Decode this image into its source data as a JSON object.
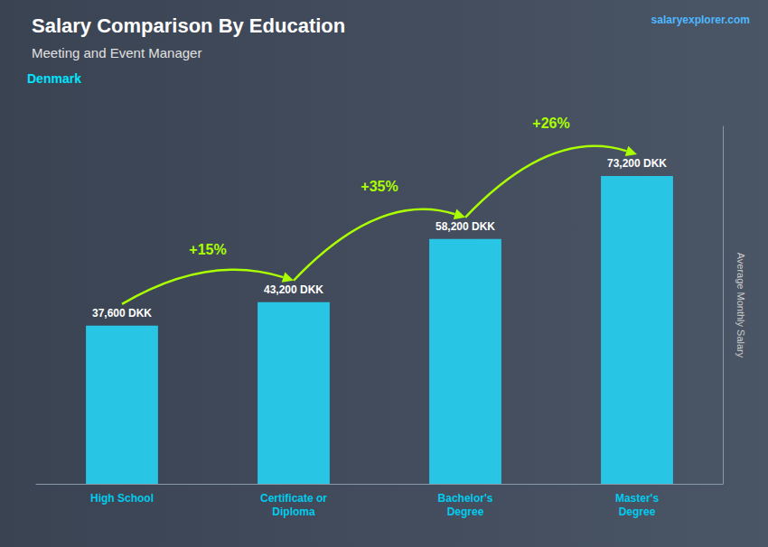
{
  "chart_data": {
    "type": "bar",
    "title": "Salary Comparison By Education",
    "subtitle": "Meeting and Event Manager",
    "annotations": [
      "Denmark",
      "salaryexplorer.com"
    ],
    "ylabel": "Average Monthly Salary",
    "categories": [
      "High School",
      "Certificate or\nDiploma",
      "Bachelor's\nDegree",
      "Master's\nDegree"
    ],
    "values": [
      37600,
      43200,
      58200,
      73200
    ],
    "value_labels": [
      "37,600 DKK",
      "43,200 DKK",
      "58,200 DKK",
      "73,200 DKK"
    ],
    "change_labels": [
      "+15%",
      "+35%",
      "+26%"
    ],
    "color": "#28c5e5",
    "ylim": [
      0,
      85000
    ],
    "grid": false,
    "data_labels": true,
    "tick_labels": "x"
  }
}
